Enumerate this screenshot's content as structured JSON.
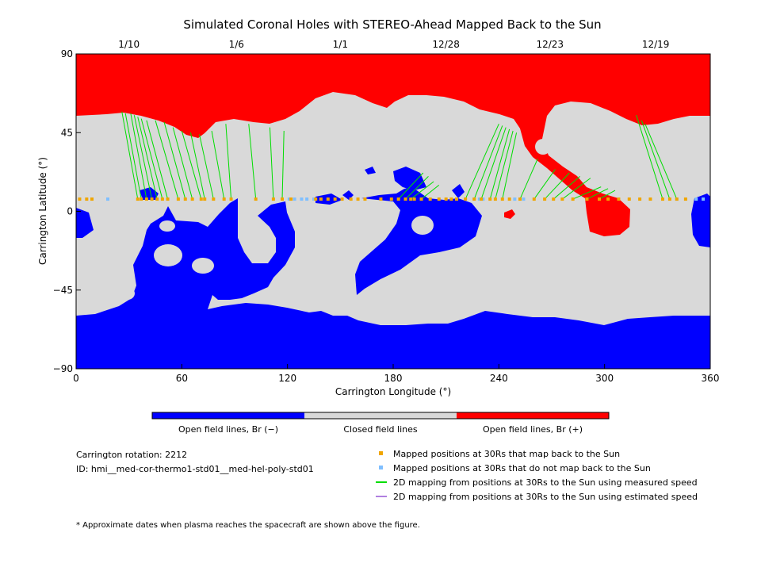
{
  "chart_data": {
    "type": "heatmap",
    "title": "Simulated Coronal Holes with STEREO-Ahead Mapped Back to the Sun",
    "xlabel": "Carrington Longitude (°)",
    "ylabel": "Carrington Latitude (°)",
    "xlim": [
      0,
      360
    ],
    "ylim": [
      -90,
      90
    ],
    "x_ticks": [
      0,
      60,
      120,
      180,
      240,
      300,
      360
    ],
    "y_ticks": [
      90,
      45,
      0,
      -45,
      -90
    ],
    "top_date_ticks": [
      {
        "lon": 30,
        "label": "1/10"
      },
      {
        "lon": 91,
        "label": "1/6"
      },
      {
        "lon": 150,
        "label": "1/1"
      },
      {
        "lon": 210,
        "label": "12/28"
      },
      {
        "lon": 269,
        "label": "12/23"
      },
      {
        "lon": 329,
        "label": "12/19"
      }
    ],
    "regions": {
      "negative": {
        "label": "Open field lines, Br (−)",
        "color": "#0000ff"
      },
      "closed": {
        "label": "Closed field lines",
        "color": "#d9d9d9"
      },
      "positive": {
        "label": "Open field lines, Br (+)",
        "color": "#ff0000"
      }
    },
    "mapped_lat": 7,
    "mapped_points": [
      2,
      6,
      9,
      35,
      37,
      40,
      43,
      46,
      49,
      52,
      58,
      62,
      66,
      71,
      73,
      78,
      84,
      88,
      102,
      112,
      117,
      122,
      136,
      139,
      143,
      147,
      151,
      156,
      160,
      164,
      173,
      179,
      183,
      187,
      190,
      192,
      196,
      201,
      206,
      210,
      213,
      216,
      221,
      226,
      230,
      235,
      238,
      242,
      246,
      252,
      260,
      266,
      271,
      276,
      282,
      290,
      297,
      302,
      308,
      314,
      320,
      326,
      333,
      337,
      341,
      346
    ],
    "unmapped_points": [
      18,
      121,
      124,
      128,
      131,
      135,
      229,
      231,
      249,
      254,
      341,
      352,
      356
    ],
    "mapping_lines": [
      {
        "lon0": 26,
        "lat0": 57,
        "lon1": 35
      },
      {
        "lon0": 28,
        "lat0": 56,
        "lon1": 37
      },
      {
        "lon0": 31,
        "lat0": 56,
        "lon1": 40
      },
      {
        "lon0": 33,
        "lat0": 55,
        "lon1": 43
      },
      {
        "lon0": 35,
        "lat0": 54,
        "lon1": 46
      },
      {
        "lon0": 37,
        "lat0": 53,
        "lon1": 49
      },
      {
        "lon0": 40,
        "lat0": 52,
        "lon1": 52
      },
      {
        "lon0": 45,
        "lat0": 52,
        "lon1": 58
      },
      {
        "lon0": 50,
        "lat0": 51,
        "lon1": 62
      },
      {
        "lon0": 55,
        "lat0": 48,
        "lon1": 66
      },
      {
        "lon0": 60,
        "lat0": 46,
        "lon1": 71
      },
      {
        "lon0": 65,
        "lat0": 45,
        "lon1": 73
      },
      {
        "lon0": 70,
        "lat0": 44,
        "lon1": 78
      },
      {
        "lon0": 77,
        "lat0": 46,
        "lon1": 84
      },
      {
        "lon0": 85,
        "lat0": 50,
        "lon1": 88
      },
      {
        "lon0": 98,
        "lat0": 50,
        "lon1": 102
      },
      {
        "lon0": 110,
        "lat0": 48,
        "lon1": 112
      },
      {
        "lon0": 118,
        "lat0": 46,
        "lon1": 117
      },
      {
        "lon0": 197,
        "lat0": 22,
        "lon1": 183
      },
      {
        "lon0": 200,
        "lat0": 20,
        "lon1": 187
      },
      {
        "lon0": 203,
        "lat0": 17,
        "lon1": 190
      },
      {
        "lon0": 206,
        "lat0": 15,
        "lon1": 196
      },
      {
        "lon0": 240,
        "lat0": 50,
        "lon1": 221
      },
      {
        "lon0": 242,
        "lat0": 49,
        "lon1": 226
      },
      {
        "lon0": 244,
        "lat0": 48,
        "lon1": 230
      },
      {
        "lon0": 246,
        "lat0": 47,
        "lon1": 235
      },
      {
        "lon0": 248,
        "lat0": 46,
        "lon1": 238
      },
      {
        "lon0": 250,
        "lat0": 45,
        "lon1": 242
      },
      {
        "lon0": 262,
        "lat0": 30,
        "lon1": 252
      },
      {
        "lon0": 272,
        "lat0": 24,
        "lon1": 260
      },
      {
        "lon0": 280,
        "lat0": 22,
        "lon1": 266
      },
      {
        "lon0": 286,
        "lat0": 20,
        "lon1": 271
      },
      {
        "lon0": 292,
        "lat0": 19,
        "lon1": 276
      },
      {
        "lon0": 298,
        "lat0": 14,
        "lon1": 282
      },
      {
        "lon0": 302,
        "lat0": 13,
        "lon1": 290
      },
      {
        "lon0": 306,
        "lat0": 12,
        "lon1": 297
      },
      {
        "lon0": 318,
        "lat0": 55,
        "lon1": 333
      },
      {
        "lon0": 321,
        "lat0": 52,
        "lon1": 337
      },
      {
        "lon0": 323,
        "lat0": 50,
        "lon1": 341
      }
    ]
  },
  "info": {
    "rotation": "Carrington rotation: 2212",
    "id": "ID: hmi__med-cor-thermo1-std01__med-hel-poly-std01"
  },
  "legend": [
    {
      "label": "Mapped positions at 30Rs that map back to the Sun",
      "color": "#f0a500",
      "kind": "square"
    },
    {
      "label": "Mapped positions at 30Rs that do not map back to the Sun",
      "color": "#7fbfff",
      "kind": "square"
    },
    {
      "label": "2D mapping from positions at 30Rs to the Sun using measured speed",
      "color": "#00dd00",
      "kind": "line"
    },
    {
      "label": "2D mapping from positions at 30Rs to the Sun using estimated speed",
      "color": "#b080e0",
      "kind": "line"
    }
  ],
  "footnote": "* Approximate dates when plasma reaches the spacecraft are shown above the figure."
}
